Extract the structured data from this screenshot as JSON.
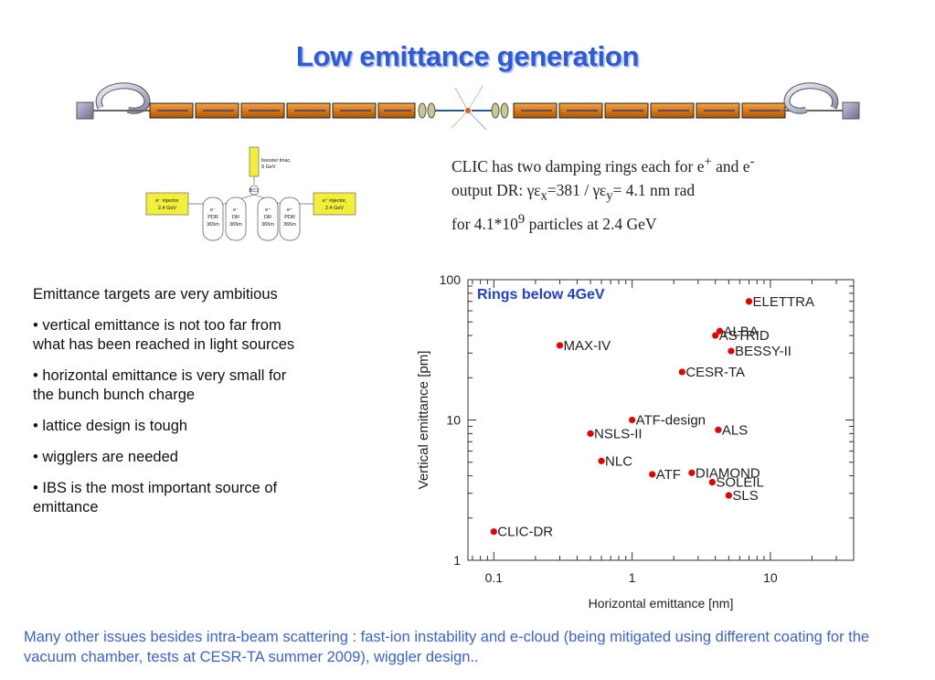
{
  "title": "Low emittance generation",
  "layout": {
    "booster": [
      "booster linac,",
      "9 GeV"
    ],
    "bc": "BC1",
    "eminus_injector": [
      "e⁻ injector",
      "2.4 GeV"
    ],
    "eplus_injector": [
      "e⁺ injector,",
      "2.4 GeV"
    ],
    "rings": [
      {
        "lines": [
          "e⁻",
          "PDR",
          "365m"
        ]
      },
      {
        "lines": [
          "e⁻",
          "DR",
          "365m"
        ]
      },
      {
        "lines": [
          "e⁺",
          "DR",
          "365m"
        ]
      },
      {
        "lines": [
          "e⁺",
          "PDR",
          "365m"
        ]
      }
    ]
  },
  "summary": {
    "line1": {
      "pre": "CLIC has two damping rings each for e",
      "sup1": "+",
      "mid": " and e",
      "sup2": "-"
    },
    "line2": {
      "pre": "output DR: γε",
      "sub1": "x",
      "mid": "=381 / γε",
      "sub2": "y",
      "post": "= 4.1 nm rad"
    },
    "line3": {
      "pre": "for 4.1*10",
      "sup": "9",
      "post": " particles at 2.4 GeV"
    }
  },
  "bullets": [
    "Emittance targets are very ambitious",
    "• vertical emittance is not too far from what has been reached in light sources",
    "• horizontal emittance is very small for the bunch bunch charge",
    "• lattice design is tough",
    "• wigglers are needed",
    "• IBS is the most important source of emittance"
  ],
  "chart_data": {
    "type": "scatter",
    "title": "Rings below 4GeV",
    "xlabel": "Horizontal emittance [nm]",
    "ylabel": "Vertical emittance [pm]",
    "xscale": "log",
    "yscale": "log",
    "xlim": [
      0.065,
      40
    ],
    "ylim": [
      1,
      100
    ],
    "xticks": [
      0.1,
      1,
      10
    ],
    "xtick_labels": [
      "0.1",
      "1",
      "10"
    ],
    "yticks": [
      1,
      10,
      100
    ],
    "ytick_labels": [
      "1",
      "10",
      "100"
    ],
    "grid": false,
    "color": "#e60000",
    "points": [
      {
        "label": "ELETTRA",
        "x": 7.0,
        "y": 70
      },
      {
        "label": "ALBA",
        "x": 4.3,
        "y": 43
      },
      {
        "label": "ASTRID",
        "x": 4.0,
        "y": 40
      },
      {
        "label": "BESSY-II",
        "x": 5.2,
        "y": 31
      },
      {
        "label": "MAX-IV",
        "x": 0.3,
        "y": 34
      },
      {
        "label": "CESR-TA",
        "x": 2.3,
        "y": 22
      },
      {
        "label": "ATF-design",
        "x": 1.0,
        "y": 10
      },
      {
        "label": "NSLS-II",
        "x": 0.5,
        "y": 8
      },
      {
        "label": "ALS",
        "x": 4.2,
        "y": 8.5
      },
      {
        "label": "NLC",
        "x": 0.6,
        "y": 5.1
      },
      {
        "label": "DIAMOND",
        "x": 2.7,
        "y": 4.2
      },
      {
        "label": "ATF",
        "x": 1.4,
        "y": 4.1
      },
      {
        "label": "SOLEIL",
        "x": 3.8,
        "y": 3.6
      },
      {
        "label": "SLS",
        "x": 5.0,
        "y": 2.9
      },
      {
        "label": "CLIC-DR",
        "x": 0.1,
        "y": 1.6
      }
    ]
  },
  "footer": "Many other issues besides intra-beam scattering : fast-ion instability and e-cloud (being mitigated using different coating for the vacuum chamber, tests at CESR-TA summer 2009), wiggler design.."
}
